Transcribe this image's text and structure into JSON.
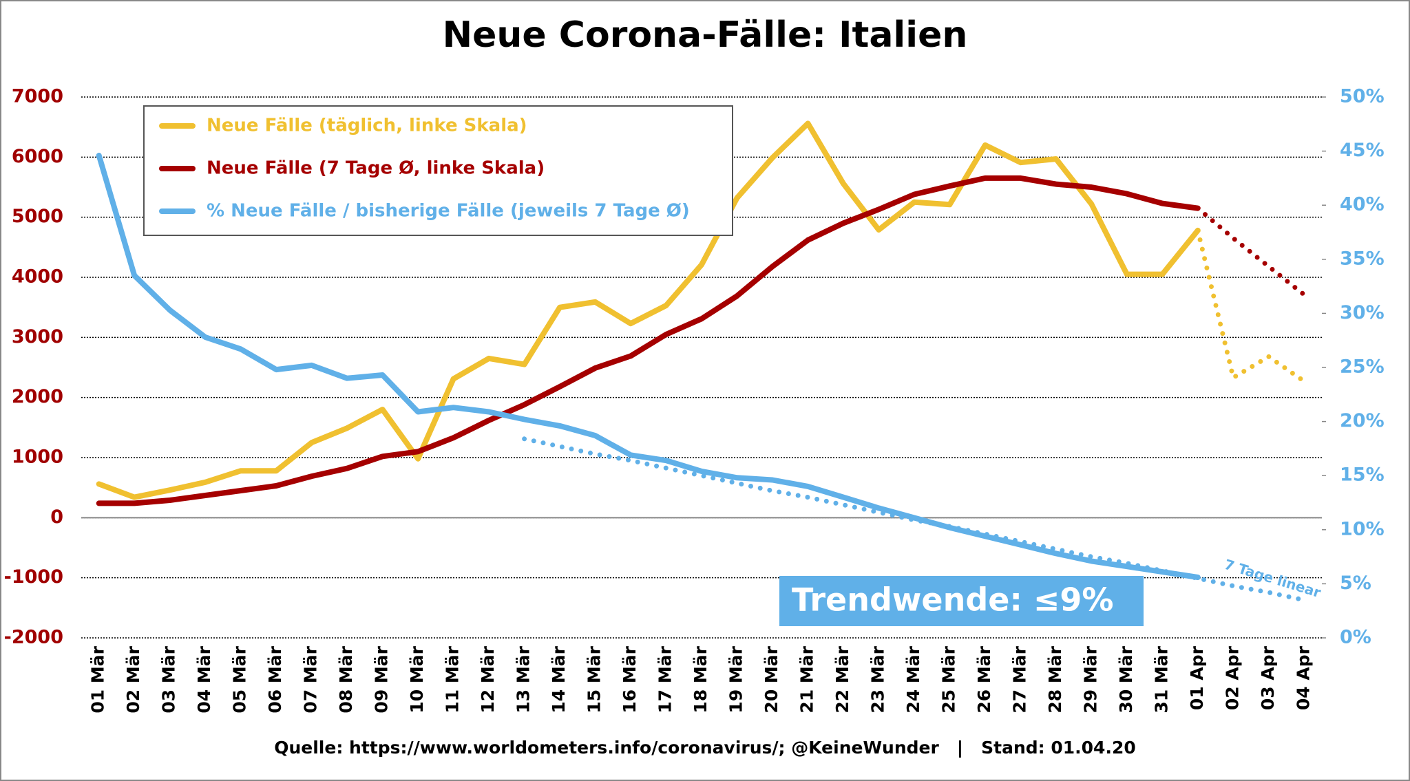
{
  "chart_data": {
    "type": "line",
    "title": "Neue Corona-Fälle: Italien",
    "categories": [
      "01 Mär",
      "02 Mär",
      "03 Mär",
      "04 Mär",
      "05 Mär",
      "06 Mär",
      "07 Mär",
      "08 Mär",
      "09 Mär",
      "10 Mär",
      "11 Mär",
      "12 Mär",
      "13 Mär",
      "14 Mär",
      "15 Mär",
      "16 Mär",
      "17 Mär",
      "18 Mär",
      "19 Mär",
      "20 Mär",
      "21 Mär",
      "22 Mär",
      "23 Mär",
      "24 Mär",
      "25 Mär",
      "26 Mär",
      "27 Mär",
      "28 Mär",
      "29 Mär",
      "30 Mär",
      "31 Mär",
      "01 Apr",
      "02 Apr",
      "03 Apr",
      "04 Apr"
    ],
    "series": [
      {
        "name": "Neue Fälle (täglich, linke Skala)",
        "color": "#f0c030",
        "dash": "solid",
        "values": [
          560,
          340,
          460,
          590,
          780,
          780,
          1250,
          1490,
          1800,
          980,
          2310,
          2650,
          2550,
          3500,
          3590,
          3230,
          3530,
          4210,
          5320,
          5990,
          6560,
          5560,
          4790,
          5250,
          5210,
          6200,
          5910,
          5970,
          5220,
          4050,
          4050,
          4780,
          null,
          null,
          null
        ]
      },
      {
        "name": "Neue Fälle (7 Tage Ø, linke Skala)",
        "color": "#a50000",
        "dash": "solid",
        "values": [
          240,
          240,
          290,
          370,
          450,
          530,
          690,
          820,
          1020,
          1100,
          1330,
          1620,
          1880,
          2180,
          2490,
          2690,
          3050,
          3310,
          3690,
          4180,
          4620,
          4900,
          5130,
          5380,
          5520,
          5650,
          5650,
          5550,
          5500,
          5390,
          5230,
          5150,
          null,
          null,
          null
        ]
      },
      {
        "name": "% Neue Fälle / bisherige Fälle (jeweils 7 Tage Ø)",
        "color": "#60b0e8",
        "dash": "solid",
        "axis": "y2",
        "values": [
          44.6,
          33.5,
          30.3,
          27.8,
          26.7,
          24.8,
          25.2,
          24.0,
          24.3,
          20.9,
          21.3,
          20.9,
          20.2,
          19.6,
          18.7,
          16.9,
          16.4,
          15.4,
          14.8,
          14.6,
          14.0,
          13.0,
          12.0,
          11.1,
          10.2,
          9.4,
          8.6,
          7.8,
          7.1,
          6.6,
          6.1,
          5.6,
          null,
          null,
          null
        ]
      },
      {
        "color": "#f0c030",
        "dash": "dotted",
        "values": [
          null,
          null,
          null,
          null,
          null,
          null,
          null,
          null,
          null,
          null,
          null,
          null,
          null,
          null,
          null,
          null,
          null,
          null,
          null,
          null,
          null,
          null,
          null,
          null,
          null,
          null,
          null,
          null,
          null,
          null,
          null,
          4780,
          2330,
          2680,
          2270
        ]
      },
      {
        "color": "#a50000",
        "dash": "dotted",
        "values": [
          null,
          null,
          null,
          null,
          null,
          null,
          null,
          null,
          null,
          null,
          null,
          null,
          null,
          null,
          null,
          null,
          null,
          null,
          null,
          null,
          null,
          null,
          null,
          null,
          null,
          null,
          null,
          null,
          null,
          null,
          null,
          5150,
          4650,
          4180,
          3710
        ]
      },
      {
        "color": "#60b0e8",
        "dash": "dotted",
        "axis": "y2",
        "values": [
          null,
          null,
          null,
          null,
          null,
          null,
          null,
          null,
          null,
          null,
          null,
          null,
          18.4,
          17.7,
          17.0,
          16.4,
          15.7,
          15.0,
          14.3,
          13.6,
          13.0,
          12.3,
          11.6,
          10.9,
          10.3,
          9.6,
          8.9,
          8.2,
          7.5,
          6.9,
          6.2,
          5.5,
          4.8,
          4.2,
          3.5
        ]
      }
    ],
    "ylim": [
      -2000,
      7000
    ],
    "yticks": [
      -2000,
      -1000,
      0,
      1000,
      2000,
      3000,
      4000,
      5000,
      6000,
      7000
    ],
    "y2lim": [
      0,
      50
    ],
    "y2ticks": [
      {
        "value": 0,
        "label": "0%"
      },
      {
        "value": 5,
        "label": "5%"
      },
      {
        "value": 10,
        "label": "10%"
      },
      {
        "value": 15,
        "label": "15%"
      },
      {
        "value": 20,
        "label": "20%"
      },
      {
        "value": 25,
        "label": "25%"
      },
      {
        "value": 30,
        "label": "30%"
      },
      {
        "value": 35,
        "label": "35%"
      },
      {
        "value": 40,
        "label": "40%"
      },
      {
        "value": 45,
        "label": "45%"
      },
      {
        "value": 50,
        "label": "50%"
      }
    ],
    "grid": true,
    "legend": "top-left",
    "annotations": [
      "Trendwende: ≤9%",
      "7 Tage linear"
    ],
    "source": "Quelle: https://www.worldometers.info/coronavirus/; @KeineWunder   |   Stand: 01.04.20"
  }
}
